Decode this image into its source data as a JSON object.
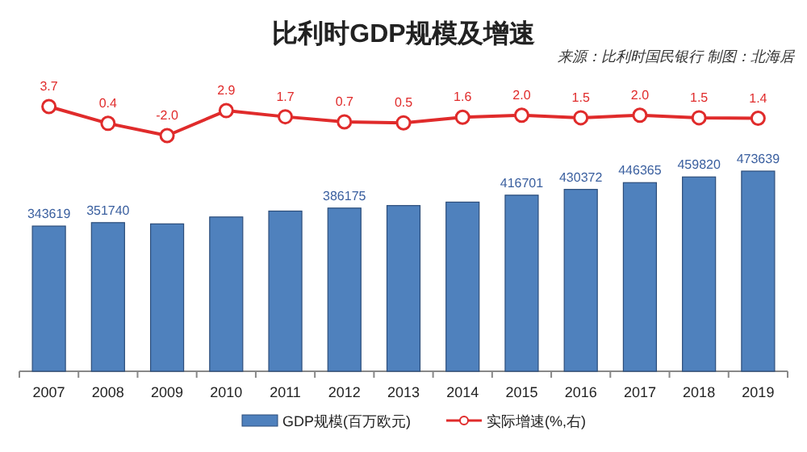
{
  "chart_data": [
    {
      "type": "line",
      "title": "比利时GDP规模及增速",
      "annotations": [
        "来源：比利时国民银行  制图：北海居"
      ],
      "categories": [
        null,
        null,
        null,
        null,
        null,
        null,
        null,
        null,
        null,
        null,
        null,
        null,
        null
      ],
      "tick_labels": false,
      "legend": "bottom",
      "series": [
        {
          "name": "实际增速(%,右)",
          "color": "#e02b2b",
          "marker": "circle",
          "values": [
            3.7,
            0.4,
            -2.0,
            2.9,
            1.7,
            0.7,
            0.5,
            1.6,
            2.0,
            1.5,
            2.0,
            1.5,
            1.4
          ],
          "value_labels": [
            "3.7",
            "0.4",
            "-2.0",
            "2.9",
            "1.7",
            "0.7",
            "0.5",
            "1.6",
            "2.0",
            "1.5",
            "2.0",
            "1.5",
            "1.4"
          ]
        }
      ]
    },
    {
      "type": "bar",
      "categories": [
        "2007",
        "2008",
        "2009",
        "2010",
        "2011",
        "2012",
        "2013",
        "2014",
        "2015",
        "2016",
        "2017",
        "2018",
        "2019"
      ],
      "tick_labels": "x",
      "legend": "bottom",
      "series": [
        {
          "name": "GDP规模(百万欧元)",
          "color": "#4f81bd",
          "values": [
            343619,
            351740,
            348781,
            365101,
            379106,
            386175,
            392130,
            400288,
            416701,
            430372,
            446365,
            459820,
            473639
          ],
          "value_labels": [
            "343619",
            "351740",
            null,
            null,
            null,
            "386175",
            null,
            null,
            "416701",
            "430372",
            "446365",
            "459820",
            "473639"
          ]
        }
      ]
    }
  ]
}
